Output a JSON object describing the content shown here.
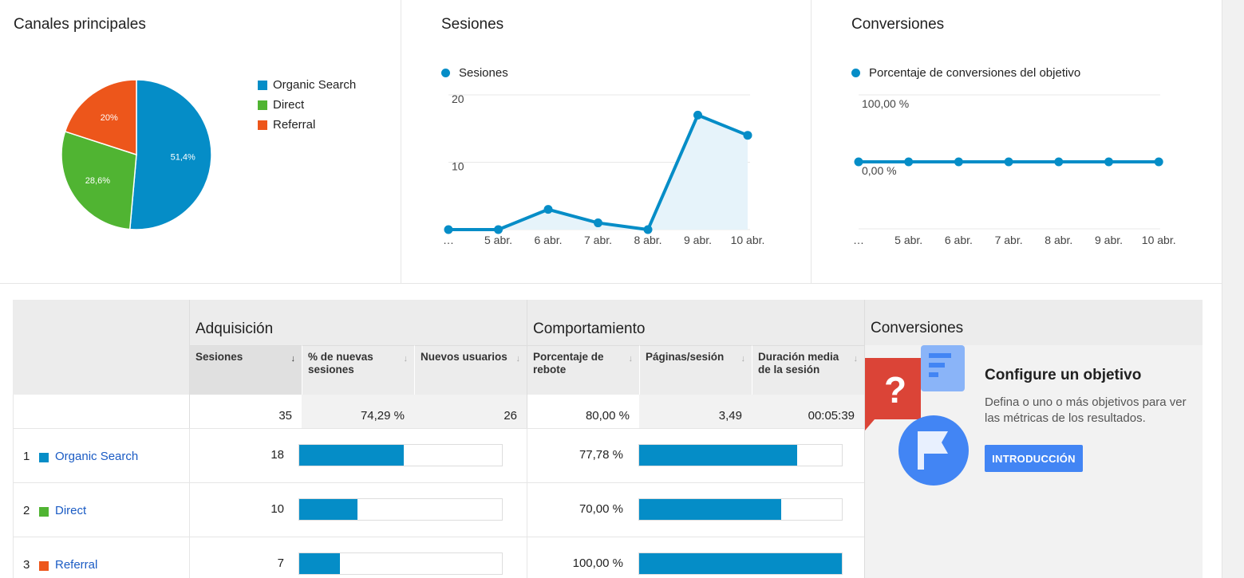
{
  "colors": {
    "organic": "#058dc7",
    "direct": "#50b432",
    "referral": "#ed561b",
    "link": "#1a5bc4",
    "button": "#4285f4"
  },
  "channels_panel": {
    "title": "Canales principales",
    "legend": [
      "Organic Search",
      "Direct",
      "Referral"
    ],
    "slice_labels": [
      "51,4%",
      "28,6%",
      "20%"
    ]
  },
  "sessions_panel": {
    "title": "Sesiones",
    "legend": "Sesiones",
    "y_ticks": [
      "20",
      "10"
    ],
    "x_ticks": [
      "…",
      "5 abr.",
      "6 abr.",
      "7 abr.",
      "8 abr.",
      "9 abr.",
      "10 abr."
    ]
  },
  "conversions_panel": {
    "title": "Conversiones",
    "legend": "Porcentaje de conversiones del objetivo",
    "y_ticks": [
      "100,00 %",
      "0,00 %"
    ],
    "x_ticks": [
      "…",
      "5 abr.",
      "6 abr.",
      "7 abr.",
      "8 abr.",
      "9 abr.",
      "10 abr."
    ]
  },
  "chart_data": [
    {
      "type": "pie",
      "title": "Canales principales",
      "categories": [
        "Organic Search",
        "Direct",
        "Referral"
      ],
      "values": [
        51.4,
        28.6,
        20
      ],
      "legend_position": "right"
    },
    {
      "type": "area",
      "title": "Sesiones",
      "x": [
        "…",
        "5 abr.",
        "6 abr.",
        "7 abr.",
        "8 abr.",
        "9 abr.",
        "10 abr."
      ],
      "series": [
        {
          "name": "Sesiones",
          "values": [
            0,
            0,
            3,
            1,
            0,
            17,
            14
          ]
        }
      ],
      "ylim": [
        0,
        20
      ],
      "grid": true
    },
    {
      "type": "line",
      "title": "Conversiones",
      "x": [
        "…",
        "5 abr.",
        "6 abr.",
        "7 abr.",
        "8 abr.",
        "9 abr.",
        "10 abr."
      ],
      "series": [
        {
          "name": "Porcentaje de conversiones del objetivo",
          "values": [
            0,
            0,
            0,
            0,
            0,
            0,
            0
          ]
        }
      ],
      "ylim": [
        -100,
        100
      ],
      "grid": true
    }
  ],
  "table": {
    "groups": {
      "acquisition": "Adquisición",
      "behavior": "Comportamiento",
      "conversions": "Conversiones"
    },
    "columns": {
      "sessions": "Sesiones",
      "new_sessions": "% de nuevas sesiones",
      "new_users": "Nuevos usuarios",
      "bounce": "Porcentaje de rebote",
      "pages": "Páginas/sesión",
      "duration": "Duración media de la sesión"
    },
    "totals": {
      "sessions": "35",
      "new_sessions": "74,29 %",
      "new_users": "26",
      "bounce": "80,00 %",
      "pages": "3,49",
      "duration": "00:05:39"
    },
    "rows": [
      {
        "rank": "1",
        "channel": "Organic Search",
        "sessions": "18",
        "sessions_share": 0.514,
        "bounce": "77,78 %",
        "bounce_share": 0.778
      },
      {
        "rank": "2",
        "channel": "Direct",
        "sessions": "10",
        "sessions_share": 0.286,
        "bounce": "70,00 %",
        "bounce_share": 0.7
      },
      {
        "rank": "3",
        "channel": "Referral",
        "sessions": "7",
        "sessions_share": 0.2,
        "bounce": "100,00 %",
        "bounce_share": 1.0
      }
    ]
  },
  "goal_cta": {
    "title": "Configure un objetivo",
    "description": "Defina o uno o más objetivos para ver las métricas de los resultados.",
    "button": "INTRODUCCIÓN"
  }
}
